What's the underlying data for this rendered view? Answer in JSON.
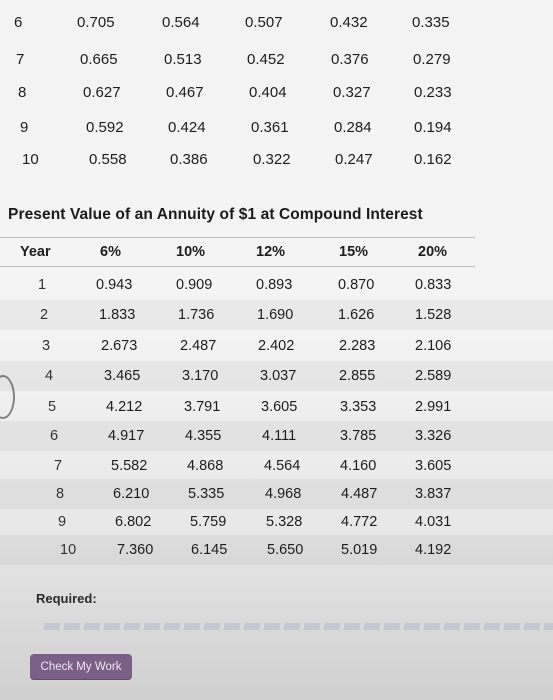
{
  "top_table": {
    "rows": [
      {
        "period": "6",
        "values": [
          "0.705",
          "0.564",
          "0.507",
          "0.432",
          "0.335"
        ]
      },
      {
        "period": "7",
        "values": [
          "0.665",
          "0.513",
          "0.452",
          "0.376",
          "0.279"
        ]
      },
      {
        "period": "8",
        "values": [
          "0.627",
          "0.467",
          "0.404",
          "0.327",
          "0.233"
        ]
      },
      {
        "period": "9",
        "values": [
          "0.592",
          "0.424",
          "0.361",
          "0.284",
          "0.194"
        ]
      },
      {
        "period": "10",
        "values": [
          "0.558",
          "0.386",
          "0.322",
          "0.247",
          "0.162"
        ]
      }
    ]
  },
  "annuity_table": {
    "title": "Present Value of an Annuity of $1 at Compound Interest",
    "headers": [
      "Year",
      "6%",
      "10%",
      "12%",
      "15%",
      "20%"
    ],
    "rows": [
      {
        "year": "1",
        "values": [
          "0.943",
          "0.909",
          "0.893",
          "0.870",
          "0.833"
        ]
      },
      {
        "year": "2",
        "values": [
          "1.833",
          "1.736",
          "1.690",
          "1.626",
          "1.528"
        ]
      },
      {
        "year": "3",
        "values": [
          "2.673",
          "2.487",
          "2.402",
          "2.283",
          "2.106"
        ]
      },
      {
        "year": "4",
        "values": [
          "3.465",
          "3.170",
          "3.037",
          "2.855",
          "2.589"
        ]
      },
      {
        "year": "5",
        "values": [
          "4.212",
          "3.791",
          "3.605",
          "3.353",
          "2.991"
        ]
      },
      {
        "year": "6",
        "values": [
          "4.917",
          "4.355",
          "4.111",
          "3.785",
          "3.326"
        ]
      },
      {
        "year": "7",
        "values": [
          "5.582",
          "4.868",
          "4.564",
          "4.160",
          "3.605"
        ]
      },
      {
        "year": "8",
        "values": [
          "6.210",
          "5.335",
          "4.968",
          "4.487",
          "3.837"
        ]
      },
      {
        "year": "9",
        "values": [
          "6.802",
          "5.759",
          "5.328",
          "4.772",
          "4.031"
        ]
      },
      {
        "year": "10",
        "values": [
          "7.360",
          "6.145",
          "5.650",
          "5.019",
          "4.192"
        ]
      }
    ]
  },
  "required": {
    "label": "Required:"
  },
  "actions": {
    "check_label": "Check My Work"
  }
}
